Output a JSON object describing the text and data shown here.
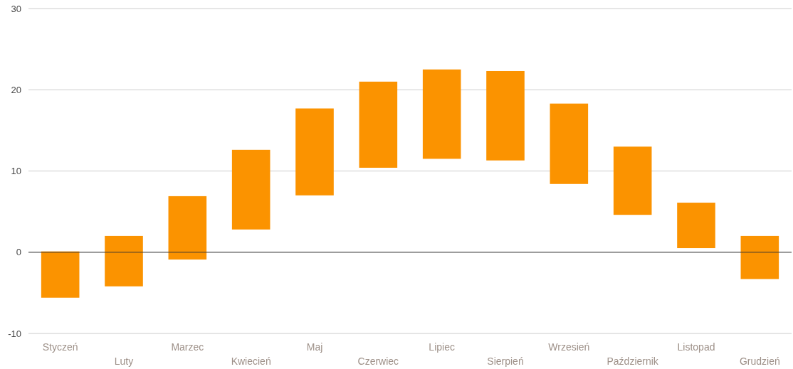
{
  "chart_data": {
    "type": "bar",
    "categories": [
      "Styczeń",
      "Luty",
      "Marzec",
      "Kwiecień",
      "Maj",
      "Czerwiec",
      "Lipiec",
      "Sierpień",
      "Wrzesień",
      "Październik",
      "Listopad",
      "Grudzień"
    ],
    "values": [
      5.7,
      6.2,
      7.8,
      9.8,
      10.7,
      10.6,
      11.0,
      11.0,
      9.9,
      8.4,
      5.6,
      5.3
    ],
    "base": [
      -5.6,
      -4.2,
      -0.9,
      2.8,
      7.0,
      10.4,
      11.5,
      11.3,
      8.4,
      4.6,
      0.5,
      -3.3
    ],
    "color": "#fb9300",
    "ylim": [
      -10,
      30
    ],
    "yticks": [
      -10,
      0,
      10,
      20,
      30
    ],
    "grid": "y",
    "ref_lines": [
      {
        "axis": "y",
        "value": 0,
        "color": "#333333"
      }
    ]
  }
}
